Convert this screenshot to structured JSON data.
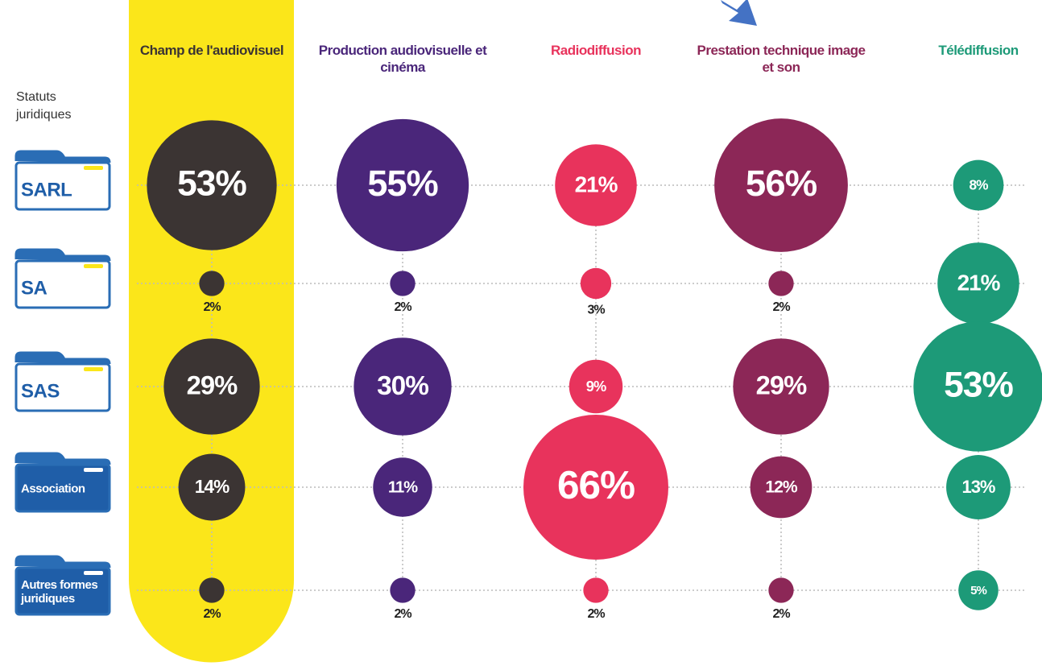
{
  "chart_data": {
    "type": "bubble",
    "row_axis_label": "Statuts juridiques",
    "categories": [
      "SARL",
      "SA",
      "SAS",
      "Association",
      "Autres formes juridiques"
    ],
    "series": [
      {
        "name": "Champ de l'audiovisuel",
        "color": "#3b3433",
        "values": [
          53,
          2,
          29,
          14,
          2
        ],
        "value_labels": [
          "53%",
          "2%",
          "29%",
          "14%",
          "2%"
        ]
      },
      {
        "name": "Production audiovisuelle et cinéma",
        "color": "#4a267a",
        "values": [
          55,
          2,
          30,
          11,
          2
        ],
        "value_labels": [
          "55%",
          "2%",
          "30%",
          "11%",
          "2%"
        ]
      },
      {
        "name": "Radiodiffusion",
        "color": "#e8335c",
        "values": [
          21,
          3,
          9,
          66,
          2
        ],
        "value_labels": [
          "21%",
          "3%",
          "9%",
          "66%",
          "2%"
        ]
      },
      {
        "name": "Prestation technique image et son",
        "color": "#8c2757",
        "values": [
          56,
          2,
          29,
          12,
          2
        ],
        "value_labels": [
          "56%",
          "2%",
          "29%",
          "12%",
          "2%"
        ]
      },
      {
        "name": "Télédiffusion",
        "color": "#1d9a78",
        "values": [
          8,
          21,
          53,
          13,
          5
        ],
        "value_labels": [
          "8%",
          "21%",
          "53%",
          "13%",
          "5%"
        ]
      }
    ]
  }
}
